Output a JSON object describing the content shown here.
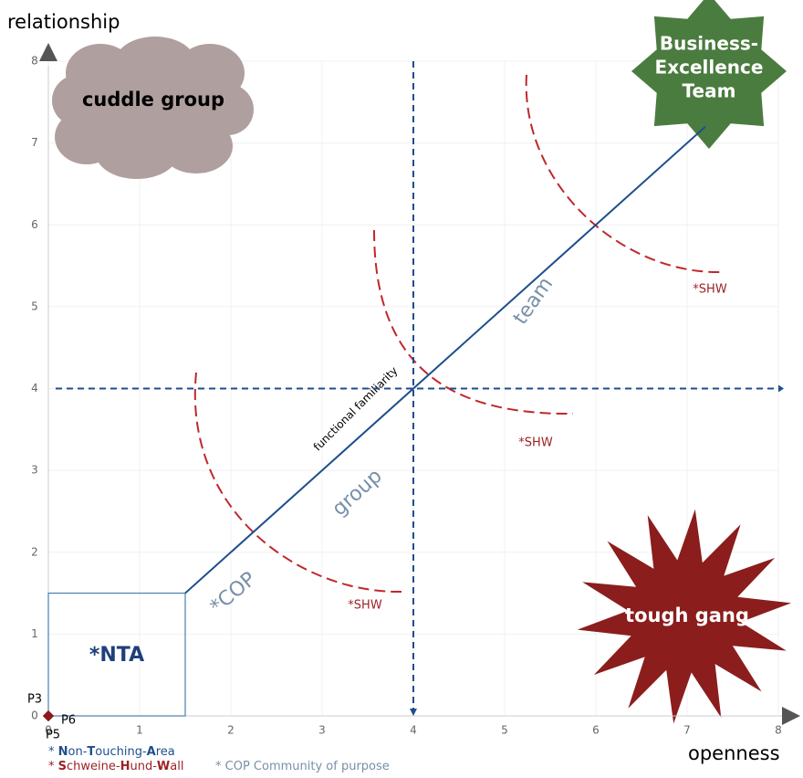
{
  "chart_data": {
    "type": "scatter",
    "x_label": "openness",
    "y_label": "relationship",
    "xlim": [
      0,
      8
    ],
    "ylim": [
      0,
      8
    ],
    "xticks": [
      0,
      1,
      2,
      3,
      4,
      5,
      6,
      7,
      8
    ],
    "yticks": [
      0,
      1,
      2,
      3,
      4,
      5,
      6,
      7,
      8
    ],
    "grid": true,
    "points": [
      {
        "label": "P3",
        "x": 0,
        "y": 0,
        "color": "#8b1a1a"
      },
      {
        "label": "P6",
        "x": 0,
        "y": 0,
        "color": "#8b1a1a"
      },
      {
        "label": "P5",
        "x": 0,
        "y": 0,
        "color": "#8b1a1a"
      }
    ],
    "diagonal": {
      "x": [
        1.5,
        7.2
      ],
      "y": [
        1.5,
        7.2
      ],
      "color": "#1f4e8c"
    },
    "reference_lines": {
      "x": 4,
      "y": 4,
      "color": "#1f4e8c"
    },
    "nta_box": {
      "x": 1.5,
      "y": 1.5
    },
    "annotations": {
      "cuddle": "cuddle group",
      "bet": [
        "Business-",
        "Excellence",
        "Team"
      ],
      "tough": "tough gang",
      "nta": "*NTA",
      "team": "team",
      "group": "group",
      "cop": "*COP",
      "familiarity": "functional familiarity",
      "shw": [
        "*SHW",
        "*SHW",
        "*SHW"
      ]
    },
    "legend": [
      {
        "color": "#1f4e8c",
        "parts": [
          "* ",
          "N",
          "on-",
          "T",
          "ouching-",
          "A",
          "rea"
        ]
      },
      {
        "color": "#9b2226",
        "parts": [
          "* ",
          "S",
          "chweine-",
          "H",
          "und-",
          "W",
          "all"
        ]
      },
      {
        "color": "#7890a8",
        "parts": [
          "* COP Community of purpose"
        ]
      }
    ]
  }
}
